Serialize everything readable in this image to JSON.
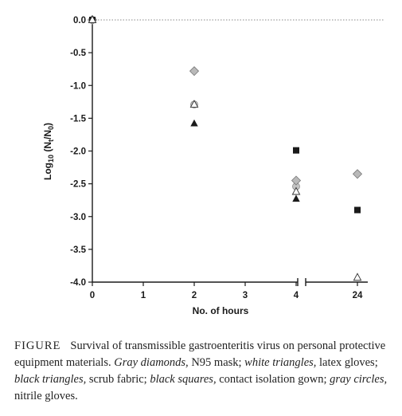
{
  "chart_data": {
    "type": "scatter",
    "title": "",
    "xlabel": "No. of hours",
    "ylabel_main": "Log",
    "ylabel_sub": "10",
    "ylabel_rest": " (N",
    "ylabel_t": "t",
    "ylabel_mid": "/N",
    "ylabel_0": "0",
    "ylabel_end": ")",
    "x_ticks": [
      "0",
      "1",
      "2",
      "3",
      "4",
      "24"
    ],
    "y_ticks": [
      "0.0",
      "-0.5",
      "-1.0",
      "-1.5",
      "-2.0",
      "-2.5",
      "-3.0",
      "-3.5",
      "-4.0"
    ],
    "ylim": [
      -4.0,
      0.0
    ],
    "x_axis_break": "between 4 and 24",
    "reference_line": 0.0,
    "legend": "none",
    "series": [
      {
        "marker": "gray-diamond",
        "color": "#b9b9b9",
        "x": [
          "0",
          "2",
          "4",
          "24"
        ],
        "y": [
          0.0,
          -0.78,
          -2.45,
          -2.35
        ]
      },
      {
        "marker": "white-triangle",
        "color": "#ffffff",
        "x": [
          "0",
          "2",
          "4",
          "24"
        ],
        "y": [
          0.0,
          -1.29,
          -2.62,
          -3.93
        ]
      },
      {
        "marker": "black-triangle",
        "color": "#1a1a1a",
        "x": [
          "0",
          "2",
          "4"
        ],
        "y": [
          0.0,
          -1.58,
          -2.73
        ]
      },
      {
        "marker": "black-square",
        "color": "#1a1a1a",
        "x": [
          "0",
          "4",
          "24"
        ],
        "y": [
          0.0,
          -1.99,
          -2.9
        ]
      },
      {
        "marker": "gray-circle",
        "color": "#c4c4c4",
        "x": [
          "0",
          "2",
          "4"
        ],
        "y": [
          0.0,
          -1.29,
          -2.54
        ]
      }
    ]
  },
  "caption": {
    "label": "FIGURE",
    "parts": [
      {
        "text": "Survival of transmissible gastroenteritis virus on personal protective equipment materials. ",
        "italic": false
      },
      {
        "text": "Gray diamonds,",
        "italic": true
      },
      {
        "text": " N95 mask; ",
        "italic": false
      },
      {
        "text": "white triangles,",
        "italic": true
      },
      {
        "text": " latex gloves; ",
        "italic": false
      },
      {
        "text": "black triangles,",
        "italic": true
      },
      {
        "text": " scrub fabric; ",
        "italic": false
      },
      {
        "text": "black squares,",
        "italic": true
      },
      {
        "text": " contact isolation gown; ",
        "italic": false
      },
      {
        "text": "gray circles,",
        "italic": true
      },
      {
        "text": " nitrile gloves.",
        "italic": false
      }
    ]
  }
}
